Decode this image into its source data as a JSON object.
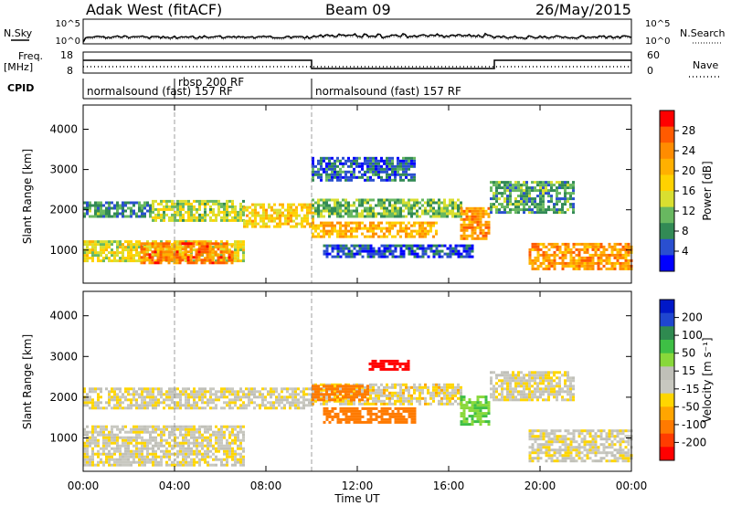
{
  "header": {
    "title": "Adak West (fitACF)",
    "beam": "Beam 09",
    "date": "26/May/2015"
  },
  "noise_panel": {
    "left_label": "N.Sky",
    "right_label": "N.Search",
    "left_ticks": [
      "10^5",
      "10^0"
    ],
    "right_ticks": [
      "10^5",
      "10^0"
    ]
  },
  "freq_panel": {
    "left_label": "Freq.",
    "left_unit": "[MHz]",
    "left_ticks": [
      "18",
      "8"
    ],
    "right_label": "Nave",
    "right_ticks": [
      "60",
      "0"
    ],
    "freq_steps": [
      {
        "start_hr": 0.0,
        "end_hr": 10.0,
        "level": "high"
      },
      {
        "start_hr": 10.0,
        "end_hr": 18.0,
        "level": "low"
      },
      {
        "start_hr": 18.0,
        "end_hr": 24.0,
        "level": "high"
      }
    ]
  },
  "cpid_panel": {
    "label": "CPID",
    "segments": [
      {
        "start_hr": 0.0,
        "text": "normalsound (fast) 157 RF",
        "row": "low"
      },
      {
        "start_hr": 4.0,
        "text": "rbsp 200 RF",
        "row": "high"
      },
      {
        "start_hr": 10.0,
        "text": "normalsound (fast) 157 RF",
        "row": "low"
      }
    ]
  },
  "power_colorbar": {
    "label": "Power [dB]",
    "ticks": [
      "28",
      "24",
      "20",
      "16",
      "12",
      "8",
      "4"
    ],
    "colors": [
      "#ff0000",
      "#ff5a00",
      "#ff8c00",
      "#ffb000",
      "#ffd200",
      "#d9df30",
      "#68b860",
      "#328a55",
      "#2a4fd0",
      "#0000ff"
    ]
  },
  "velocity_colorbar": {
    "label": "Velocity [m s⁻¹]",
    "ticks": [
      "200",
      "100",
      "50",
      "15",
      "-15",
      "-50",
      "-100",
      "-200"
    ],
    "colors": [
      "#0018c8",
      "#1f46d0",
      "#2f8a50",
      "#3ebf45",
      "#88d83a",
      "#c0c0b8",
      "#c8c8c0",
      "#ffd600",
      "#ffa500",
      "#ff7a00",
      "#ff3c00",
      "#ff0000"
    ]
  },
  "chart_data": [
    {
      "type": "heatmap",
      "name": "power",
      "ylabel": "Slant Range [km]",
      "xlabel": "Time UT",
      "x_ticks": [
        "00:00",
        "04:00",
        "08:00",
        "12:00",
        "16:00",
        "20:00",
        "00:00"
      ],
      "y_ticks": [
        "1000",
        "2000",
        "3000",
        "4000"
      ],
      "xlim_hr": [
        0,
        24
      ],
      "ylim_km": [
        180,
        4600
      ],
      "bands": [
        {
          "t0": 0.0,
          "t1": 3.0,
          "r0": 1800,
          "r1": 2150,
          "value_db": 10
        },
        {
          "t0": 3.0,
          "t1": 7.0,
          "r0": 1700,
          "r1": 2200,
          "value_db": 14
        },
        {
          "t0": 7.0,
          "t1": 10.0,
          "r0": 1550,
          "r1": 2100,
          "value_db": 18
        },
        {
          "t0": 10.0,
          "t1": 16.5,
          "r0": 1800,
          "r1": 2250,
          "value_db": 12
        },
        {
          "t0": 10.0,
          "t1": 15.5,
          "r0": 1300,
          "r1": 1700,
          "value_db": 20
        },
        {
          "t0": 16.5,
          "t1": 17.8,
          "r0": 1250,
          "r1": 2000,
          "value_db": 22
        },
        {
          "t0": 17.8,
          "t1": 21.5,
          "r0": 1900,
          "r1": 2650,
          "value_db": 10
        },
        {
          "t0": 0.0,
          "t1": 7.0,
          "r0": 700,
          "r1": 1200,
          "value_db": 16
        },
        {
          "t0": 2.5,
          "t1": 6.5,
          "r0": 650,
          "r1": 1150,
          "value_db": 24
        },
        {
          "t0": 19.5,
          "t1": 24.0,
          "r0": 500,
          "r1": 1150,
          "value_db": 22
        },
        {
          "t0": 10.5,
          "t1": 17.0,
          "r0": 800,
          "r1": 1100,
          "value_db": 6
        },
        {
          "t0": 10.0,
          "t1": 14.5,
          "r0": 2700,
          "r1": 3300,
          "value_db": 7
        }
      ]
    },
    {
      "type": "heatmap",
      "name": "velocity",
      "ylabel": "Slant Range [km]",
      "xlabel": "Time UT",
      "x_ticks": [
        "00:00",
        "04:00",
        "08:00",
        "12:00",
        "16:00",
        "20:00",
        "00:00"
      ],
      "y_ticks": [
        "1000",
        "2000",
        "3000",
        "4000"
      ],
      "xlim_hr": [
        0,
        24
      ],
      "ylim_km": [
        180,
        4600
      ],
      "bands": [
        {
          "t0": 0.0,
          "t1": 10.0,
          "r0": 1700,
          "r1": 2200,
          "value_ms": 0
        },
        {
          "t0": 0.0,
          "t1": 7.0,
          "r0": 300,
          "r1": 1300,
          "value_ms": 0
        },
        {
          "t0": 10.0,
          "t1": 16.5,
          "r0": 1800,
          "r1": 2300,
          "value_ms": -5
        },
        {
          "t0": 10.0,
          "t1": 12.5,
          "r0": 1900,
          "r1": 2300,
          "value_ms": -60
        },
        {
          "t0": 10.5,
          "t1": 14.5,
          "r0": 1350,
          "r1": 1700,
          "value_ms": -50
        },
        {
          "t0": 16.5,
          "t1": 17.8,
          "r0": 1300,
          "r1": 2000,
          "value_ms": 30
        },
        {
          "t0": 17.8,
          "t1": 21.5,
          "r0": 1900,
          "r1": 2600,
          "value_ms": 0
        },
        {
          "t0": 19.5,
          "t1": 24.0,
          "r0": 400,
          "r1": 1150,
          "value_ms": 0
        },
        {
          "t0": 12.5,
          "t1": 14.2,
          "r0": 2650,
          "r1": 2900,
          "value_ms": -220
        }
      ]
    }
  ]
}
